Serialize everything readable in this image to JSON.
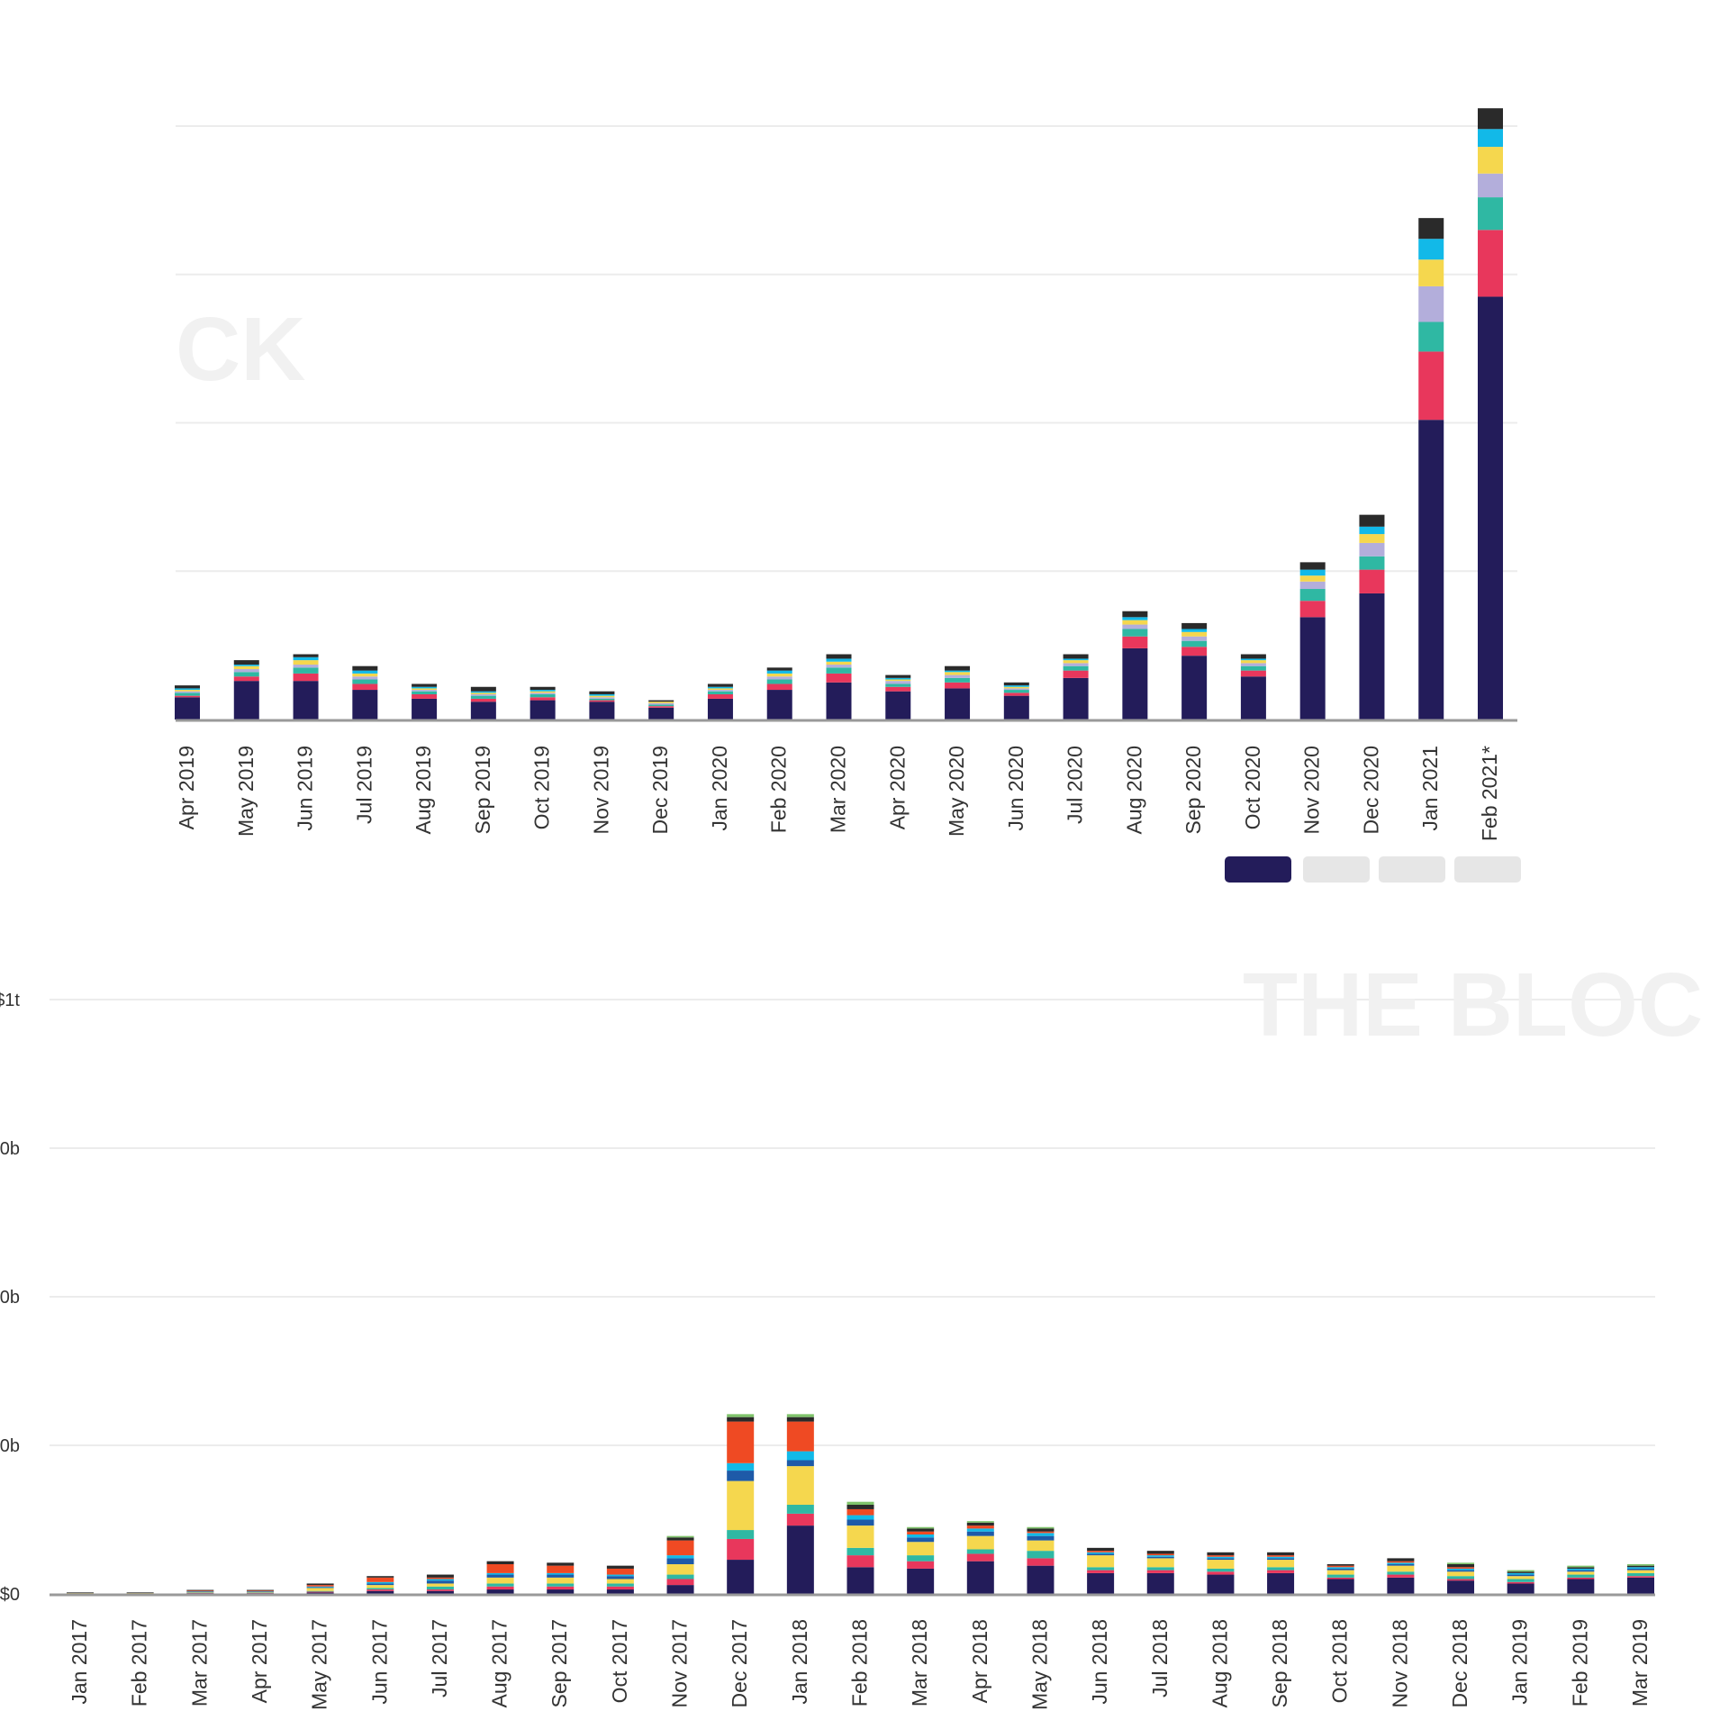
{
  "colors": {
    "navy": "#231c5a",
    "crimson": "#e8375c",
    "teal": "#2fb8a3",
    "lavender": "#b3aedb",
    "yellow": "#f5d74e",
    "cyan": "#12b9e8",
    "blue": "#1e5aa8",
    "orange": "#ef4a23",
    "dark": "#2a2a2a",
    "green": "#7fc36b",
    "brown": "#7a4a1a",
    "grid": "#ececec",
    "axis": "#999999"
  },
  "watermarks": {
    "top": "CK",
    "bottom": "THE BLOC"
  },
  "legend_buttons": [
    {
      "active": true
    },
    {
      "active": false
    },
    {
      "active": false
    },
    {
      "active": false
    }
  ],
  "chart_data": [
    {
      "type": "bar",
      "stacked": true,
      "categories": [
        "Apr 2019",
        "May 2019",
        "Jun 2019",
        "Jul 2019",
        "Aug 2019",
        "Sep 2019",
        "Oct 2019",
        "Nov 2019",
        "Dec 2019",
        "Jan 2020",
        "Feb 2020",
        "Mar 2020",
        "Apr 2020",
        "May 2020",
        "Jun 2020",
        "Jul 2020",
        "Aug 2020",
        "Sep 2020",
        "Oct 2020",
        "Nov 2020",
        "Dec 2020",
        "Jan 2021",
        "Feb 2021*"
      ],
      "y_axis_labels_visible": false,
      "ylim": [
        0,
        400
      ],
      "grid": true,
      "series": [
        {
          "color": "navy",
          "values": [
            15,
            26,
            26,
            20,
            14,
            12,
            13,
            12,
            8,
            14,
            20,
            25,
            19,
            21,
            16,
            28,
            48,
            43,
            29,
            69,
            85,
            202,
            285
          ]
        },
        {
          "color": "crimson",
          "values": [
            1,
            3,
            5,
            4,
            3,
            2,
            2,
            1,
            1,
            3,
            4,
            6,
            3,
            4,
            2,
            5,
            8,
            6,
            4,
            11,
            16,
            46,
            45
          ]
        },
        {
          "color": "teal",
          "values": [
            2,
            3,
            4,
            3,
            2,
            2,
            2,
            1,
            1,
            2,
            3,
            4,
            2,
            3,
            2,
            3,
            5,
            4,
            3,
            8,
            9,
            20,
            22
          ]
        },
        {
          "color": "lavender",
          "values": [
            1,
            2,
            2,
            2,
            1,
            1,
            1,
            1,
            1,
            1,
            2,
            2,
            2,
            2,
            1,
            2,
            3,
            3,
            2,
            5,
            9,
            24,
            16
          ]
        },
        {
          "color": "yellow",
          "values": [
            1,
            2,
            3,
            2,
            1,
            1,
            1,
            1,
            1,
            1,
            2,
            2,
            1,
            2,
            1,
            2,
            3,
            3,
            2,
            4,
            6,
            18,
            18
          ]
        },
        {
          "color": "cyan",
          "values": [
            1,
            1,
            2,
            2,
            1,
            1,
            1,
            1,
            0,
            1,
            2,
            2,
            1,
            1,
            1,
            1,
            2,
            2,
            1,
            4,
            5,
            14,
            12
          ]
        },
        {
          "color": "dark",
          "values": [
            2,
            3,
            2,
            3,
            2,
            3,
            2,
            2,
            1,
            2,
            2,
            3,
            2,
            3,
            2,
            3,
            4,
            4,
            3,
            5,
            8,
            14,
            14
          ]
        }
      ]
    },
    {
      "type": "bar",
      "stacked": true,
      "categories": [
        "Jan 2017",
        "Feb 2017",
        "Mar 2017",
        "Apr 2017",
        "May 2017",
        "Jun 2017",
        "Jul 2017",
        "Aug 2017",
        "Sep 2017",
        "Oct 2017",
        "Nov 2017",
        "Dec 2017",
        "Jan 2018",
        "Feb 2018",
        "Mar 2018",
        "Apr 2018",
        "May 2018",
        "Jun 2018",
        "Jul 2018",
        "Aug 2018",
        "Sep 2018",
        "Oct 2018",
        "Nov 2018",
        "Dec 2018",
        "Jan 2019",
        "Feb 2019",
        "Mar 2019"
      ],
      "y_tick_labels": [
        "$0",
        "0b",
        "0b",
        "0b",
        "$1t"
      ],
      "ylim": [
        0,
        400
      ],
      "grid": true,
      "series": [
        {
          "color": "navy",
          "values": [
            0,
            0,
            0.5,
            0.5,
            1,
            2,
            2,
            3,
            3,
            3,
            6,
            23,
            46,
            18,
            17,
            22,
            19,
            14,
            14,
            13,
            14,
            10,
            11,
            9,
            7,
            10,
            11
          ]
        },
        {
          "color": "crimson",
          "values": [
            0,
            0,
            0.3,
            0.3,
            0.5,
            1,
            1,
            2,
            2,
            2,
            4,
            14,
            8,
            8,
            5,
            5,
            5,
            2,
            2,
            2,
            2,
            1,
            2,
            1,
            1,
            1,
            1
          ]
        },
        {
          "color": "teal",
          "values": [
            0,
            0,
            0.2,
            0.2,
            0.5,
            1,
            2,
            2,
            2,
            2,
            3,
            6,
            6,
            5,
            4,
            3,
            5,
            2,
            2,
            2,
            2,
            2,
            2,
            2,
            2,
            2,
            2
          ]
        },
        {
          "color": "yellow",
          "values": [
            0.5,
            0.5,
            0.3,
            0.3,
            2,
            2,
            2,
            4,
            4,
            3,
            7,
            33,
            26,
            15,
            9,
            9,
            7,
            8,
            6,
            6,
            5,
            3,
            4,
            3,
            2,
            2,
            2
          ]
        },
        {
          "color": "blue",
          "values": [
            0,
            0,
            0.2,
            0.2,
            0.5,
            1,
            2,
            2,
            2,
            2,
            4,
            7,
            4,
            4,
            3,
            3,
            3,
            1,
            1,
            1,
            1,
            1,
            1,
            1,
            1,
            1,
            1
          ]
        },
        {
          "color": "cyan",
          "values": [
            0,
            0,
            0.2,
            0.2,
            0.5,
            1,
            1,
            1,
            1,
            1,
            2,
            5,
            6,
            3,
            2,
            2,
            2,
            1,
            1,
            1,
            1,
            1,
            1,
            1,
            1,
            1,
            1
          ]
        },
        {
          "color": "orange",
          "values": [
            0,
            0,
            0.5,
            0.5,
            1,
            3,
            1,
            6,
            5,
            4,
            10,
            28,
            20,
            4,
            2,
            2,
            1,
            1,
            1,
            1,
            1,
            1,
            1,
            1,
            0,
            0,
            0
          ]
        },
        {
          "color": "dark",
          "values": [
            0.5,
            0.5,
            0.5,
            0.5,
            1,
            1,
            2,
            2,
            2,
            2,
            2,
            3,
            3,
            3,
            2,
            2,
            2,
            2,
            2,
            2,
            2,
            1,
            2,
            2,
            1,
            1,
            1
          ]
        },
        {
          "color": "green",
          "values": [
            0,
            0,
            0,
            0,
            0,
            0,
            0,
            0,
            0,
            0,
            1,
            2,
            2,
            2,
            1,
            1,
            1,
            0,
            0,
            0,
            0,
            0,
            0,
            1,
            1,
            1,
            1
          ]
        }
      ]
    }
  ]
}
